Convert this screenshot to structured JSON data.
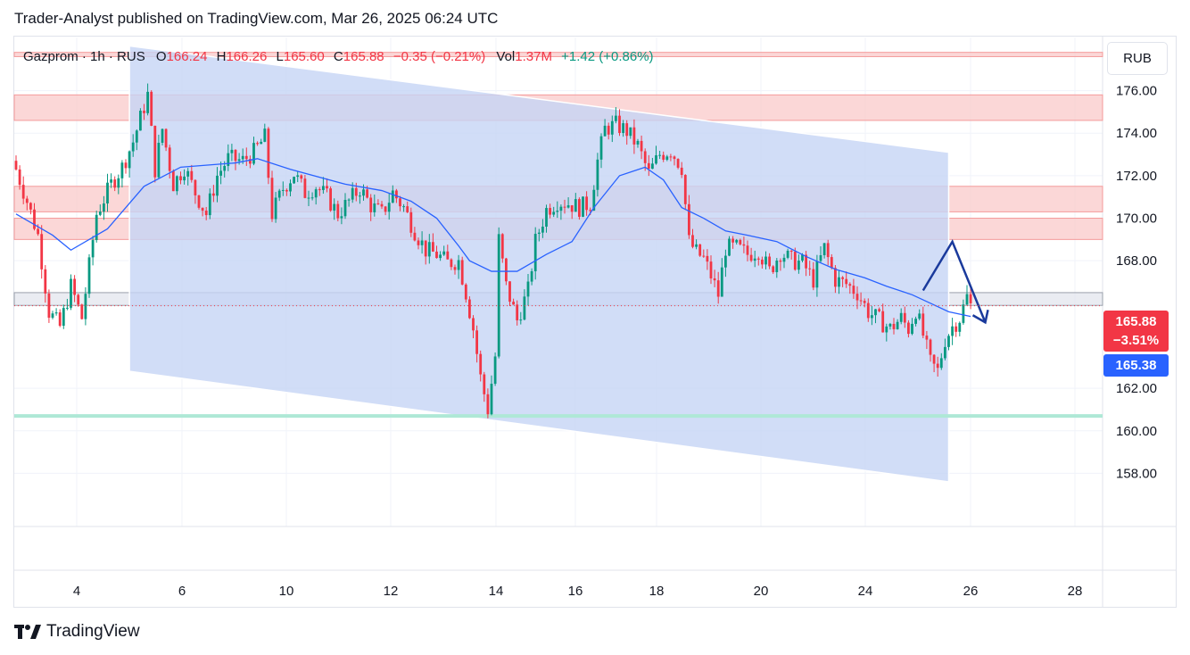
{
  "header": {
    "published": "Trader-Analyst published on TradingView.com, Mar 26, 2025 06:24 UTC"
  },
  "legend": {
    "symbol": "Gazprom · 1h · RUS",
    "o_label": "O",
    "o_value": "166.24",
    "h_label": "H",
    "h_value": "166.26",
    "l_label": "L",
    "l_value": "165.60",
    "c_label": "C",
    "c_value": "165.88",
    "change": "−0.35 (−0.21%)",
    "vol_label": "Vol",
    "vol_value": "1.37M",
    "vol_change": "+1.42 (+0.86%)"
  },
  "currency_button": "RUB",
  "tags": {
    "last_price": "165.88",
    "last_change": "−3.51%",
    "ma_value": "165.38"
  },
  "footer": {
    "brand": "TradingView"
  },
  "colors": {
    "up": "#089981",
    "down": "#f23645",
    "ma": "#2962ff",
    "channel": "#c5d4f5",
    "resistance_zone": "#f9caca",
    "support_line": "#aee8d6",
    "arrow": "#1a3a9c"
  },
  "chart_data": {
    "type": "candlestick",
    "title": "",
    "x_ticks": [
      "4",
      "6",
      "10",
      "12",
      "14",
      "16",
      "18",
      "20",
      "24",
      "26",
      "28"
    ],
    "y_ticks": [
      "176.00",
      "174.00",
      "172.00",
      "170.00",
      "168.00",
      "162.00",
      "160.00",
      "158.00"
    ],
    "ylim": [
      155.5,
      178.5
    ],
    "grid": true,
    "price_anchors": [
      [
        0,
        172.3
      ],
      [
        3,
        170.8
      ],
      [
        6,
        169.2
      ],
      [
        9,
        165.6
      ],
      [
        12,
        164.9
      ],
      [
        15,
        166.8
      ],
      [
        18,
        165.3
      ],
      [
        22,
        170.2
      ],
      [
        26,
        171.6
      ],
      [
        29,
        172.4
      ],
      [
        32,
        173.6
      ],
      [
        36,
        175.8
      ],
      [
        38,
        172.3
      ],
      [
        40,
        174.2
      ],
      [
        43,
        171.6
      ],
      [
        46,
        172.4
      ],
      [
        49,
        171.2
      ],
      [
        52,
        170.2
      ],
      [
        55,
        172.0
      ],
      [
        58,
        172.8
      ],
      [
        62,
        172.7
      ],
      [
        65,
        173.1
      ],
      [
        68,
        173.8
      ],
      [
        70,
        170.2
      ],
      [
        73,
        171.4
      ],
      [
        76,
        172.1
      ],
      [
        79,
        171.2
      ],
      [
        82,
        171.5
      ],
      [
        85,
        171.0
      ],
      [
        88,
        170.2
      ],
      [
        91,
        170.8
      ],
      [
        94,
        171.4
      ],
      [
        97,
        170.6
      ],
      [
        100,
        170.2
      ],
      [
        103,
        171.2
      ],
      [
        106,
        170.5
      ],
      [
        109,
        169.4
      ],
      [
        112,
        168.5
      ],
      [
        115,
        168.3
      ],
      [
        118,
        167.9
      ],
      [
        121,
        168.0
      ],
      [
        123,
        166.5
      ],
      [
        125,
        164.8
      ],
      [
        127,
        162.5
      ],
      [
        129,
        161.0
      ],
      [
        131,
        163.5
      ],
      [
        132,
        169.0
      ],
      [
        134,
        166.8
      ],
      [
        137,
        165.2
      ],
      [
        140,
        166.6
      ],
      [
        142,
        168.9
      ],
      [
        145,
        170.4
      ],
      [
        148,
        170.8
      ],
      [
        151,
        170.7
      ],
      [
        154,
        170.5
      ],
      [
        157,
        170.7
      ],
      [
        159,
        172.7
      ],
      [
        161,
        174.2
      ],
      [
        164,
        174.4
      ],
      [
        167,
        174.1
      ],
      [
        170,
        173.4
      ],
      [
        173,
        172.1
      ],
      [
        176,
        173.0
      ],
      [
        179,
        173.2
      ],
      [
        182,
        172.4
      ],
      [
        184,
        168.9
      ],
      [
        186,
        168.4
      ],
      [
        188,
        168.1
      ],
      [
        190,
        167.3
      ],
      [
        192,
        166.4
      ],
      [
        194,
        168.6
      ],
      [
        197,
        168.6
      ],
      [
        200,
        168.3
      ],
      [
        203,
        168.5
      ],
      [
        206,
        167.5
      ],
      [
        209,
        168.4
      ],
      [
        212,
        168.0
      ],
      [
        215,
        167.9
      ],
      [
        218,
        167.1
      ],
      [
        221,
        168.6
      ],
      [
        224,
        167.1
      ],
      [
        227,
        166.9
      ],
      [
        230,
        166.5
      ],
      [
        233,
        165.6
      ],
      [
        236,
        165.2
      ],
      [
        239,
        164.8
      ],
      [
        242,
        165.3
      ],
      [
        244,
        164.8
      ],
      [
        246,
        165.7
      ],
      [
        248,
        164.5
      ],
      [
        250,
        163.2
      ],
      [
        252,
        162.8
      ],
      [
        254,
        164.3
      ],
      [
        256,
        164.9
      ],
      [
        258,
        165.3
      ],
      [
        260,
        166.3
      ],
      [
        261,
        165.88
      ]
    ],
    "sma": {
      "name": "",
      "points": [
        [
          0,
          170.2
        ],
        [
          10,
          169.2
        ],
        [
          15,
          168.5
        ],
        [
          25,
          169.5
        ],
        [
          35,
          171.5
        ],
        [
          45,
          172.4
        ],
        [
          60,
          172.6
        ],
        [
          66,
          172.8
        ],
        [
          75,
          172.3
        ],
        [
          90,
          171.6
        ],
        [
          100,
          171.3
        ],
        [
          108,
          170.8
        ],
        [
          115,
          170.0
        ],
        [
          121,
          168.7
        ],
        [
          124,
          168.0
        ],
        [
          130,
          167.5
        ],
        [
          137,
          167.5
        ],
        [
          145,
          168.3
        ],
        [
          152,
          168.9
        ],
        [
          158,
          170.5
        ],
        [
          165,
          172.0
        ],
        [
          172,
          172.4
        ],
        [
          177,
          171.8
        ],
        [
          182,
          170.5
        ],
        [
          188,
          170.0
        ],
        [
          194,
          169.4
        ],
        [
          200,
          169.2
        ],
        [
          208,
          168.9
        ],
        [
          216,
          168.2
        ],
        [
          224,
          167.6
        ],
        [
          232,
          167.2
        ],
        [
          238,
          166.8
        ],
        [
          245,
          166.4
        ],
        [
          250,
          166.0
        ],
        [
          255,
          165.6
        ],
        [
          261,
          165.38
        ]
      ]
    },
    "bars": 262,
    "x_start_label": "4 (partial)",
    "regression_channel": {
      "start_bar": 31,
      "end_bar": 255,
      "upper_start": 178.1,
      "upper_end": 173.1,
      "lower_start": 162.8,
      "lower_end": 157.6
    },
    "zones": [
      {
        "from": 174.6,
        "to": 175.8,
        "color": "resistance"
      },
      {
        "from": 170.3,
        "to": 171.5,
        "color": "resistance"
      },
      {
        "from": 169.0,
        "to": 170.0,
        "color": "resistance"
      },
      {
        "from": 177.6,
        "to": 177.8,
        "color": "resistance"
      },
      {
        "from": 165.9,
        "to": 166.5,
        "color": "gray"
      }
    ],
    "support_line": 160.7,
    "projection_arrow": [
      [
        248,
        166.6
      ],
      [
        256,
        168.9
      ],
      [
        265,
        165.1
      ]
    ]
  }
}
